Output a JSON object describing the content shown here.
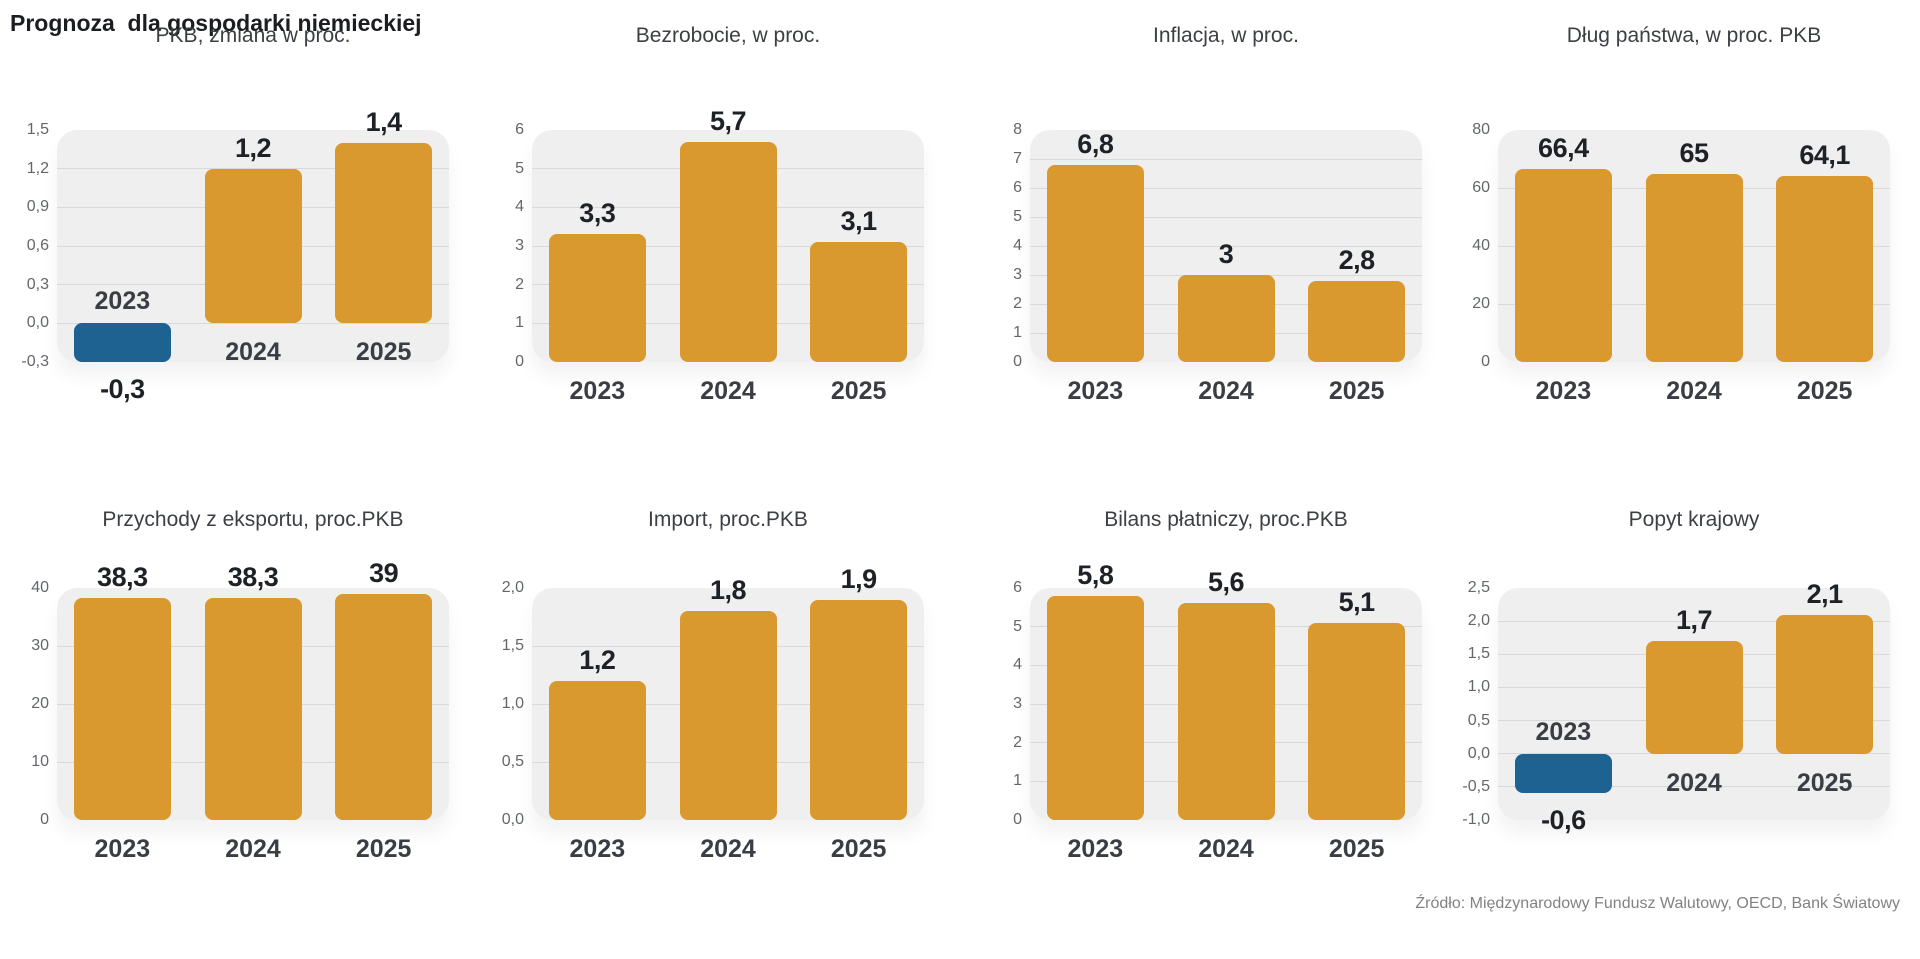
{
  "page": {
    "title": "Prognoza  dla gospodarki niemieckiej",
    "source": "Źródło: Międzynarodowy Fundusz Walutowy, OECD, Bank Światowy"
  },
  "colors": {
    "bar_positive": "#d9992f",
    "bar_negative": "#1d6290",
    "plot_background": "#efefef",
    "gridline": "#d9d9d9"
  },
  "chart_data": [
    {
      "type": "bar",
      "title": "PKB, zmiana w proc.",
      "categories": [
        "2023",
        "2024",
        "2025"
      ],
      "values": [
        -0.3,
        1.2,
        1.4
      ],
      "value_labels": [
        "-0,3",
        "1,2",
        "1,4"
      ],
      "ylim": [
        -0.3,
        1.5
      ],
      "yticks": [
        1.5,
        1.2,
        0.9,
        0.6,
        0.3,
        0.0,
        -0.3
      ],
      "ytick_labels": [
        "1,5",
        "1,2",
        "0,9",
        "0,6",
        "0,3",
        "0,0",
        "-0,3"
      ],
      "grid": true,
      "legend": false
    },
    {
      "type": "bar",
      "title": "Bezrobocie, w proc.",
      "categories": [
        "2023",
        "2024",
        "2025"
      ],
      "values": [
        3.3,
        5.7,
        3.1
      ],
      "value_labels": [
        "3,3",
        "5,7",
        "3,1"
      ],
      "ylim": [
        0,
        6
      ],
      "yticks": [
        6,
        5,
        4,
        3,
        2,
        1,
        0
      ],
      "ytick_labels": [
        "6",
        "5",
        "4",
        "3",
        "2",
        "1",
        "0"
      ],
      "grid": true,
      "legend": false
    },
    {
      "type": "bar",
      "title": "Inflacja, w proc.",
      "categories": [
        "2023",
        "2024",
        "2025"
      ],
      "values": [
        6.8,
        3,
        2.8
      ],
      "value_labels": [
        "6,8",
        "3",
        "2,8"
      ],
      "ylim": [
        0,
        8
      ],
      "yticks": [
        8,
        7,
        6,
        5,
        4,
        3,
        2,
        1,
        0
      ],
      "ytick_labels": [
        "8",
        "7",
        "6",
        "5",
        "4",
        "3",
        "2",
        "1",
        "0"
      ],
      "grid": true,
      "legend": false
    },
    {
      "type": "bar",
      "title": "Dług państwa, w proc. PKB",
      "categories": [
        "2023",
        "2024",
        "2025"
      ],
      "values": [
        66.4,
        65,
        64.1
      ],
      "value_labels": [
        "66,4",
        "65",
        "64,1"
      ],
      "ylim": [
        0,
        80
      ],
      "yticks": [
        80,
        60,
        40,
        20,
        0
      ],
      "ytick_labels": [
        "80",
        "60",
        "40",
        "20",
        "0"
      ],
      "grid": true,
      "legend": false
    },
    {
      "type": "bar",
      "title": "Przychody z eksportu, proc.PKB",
      "categories": [
        "2023",
        "2024",
        "2025"
      ],
      "values": [
        38.3,
        38.3,
        39
      ],
      "value_labels": [
        "38,3",
        "38,3",
        "39"
      ],
      "ylim": [
        0,
        40
      ],
      "yticks": [
        40,
        30,
        20,
        10,
        0
      ],
      "ytick_labels": [
        "40",
        "30",
        "20",
        "10",
        "0"
      ],
      "grid": true,
      "legend": false
    },
    {
      "type": "bar",
      "title": "Import, proc.PKB",
      "categories": [
        "2023",
        "2024",
        "2025"
      ],
      "values": [
        1.2,
        1.8,
        1.9
      ],
      "value_labels": [
        "1,2",
        "1,8",
        "1,9"
      ],
      "ylim": [
        0,
        2
      ],
      "yticks": [
        2.0,
        1.5,
        1.0,
        0.5,
        0.0
      ],
      "ytick_labels": [
        "2,0",
        "1,5",
        "1,0",
        "0,5",
        "0,0"
      ],
      "grid": true,
      "legend": false
    },
    {
      "type": "bar",
      "title": "Bilans płatniczy, proc.PKB",
      "categories": [
        "2023",
        "2024",
        "2025"
      ],
      "values": [
        5.8,
        5.6,
        5.1
      ],
      "value_labels": [
        "5,8",
        "5,6",
        "5,1"
      ],
      "ylim": [
        0,
        6
      ],
      "yticks": [
        6,
        5,
        4,
        3,
        2,
        1,
        0
      ],
      "ytick_labels": [
        "6",
        "5",
        "4",
        "3",
        "2",
        "1",
        "0"
      ],
      "grid": true,
      "legend": false
    },
    {
      "type": "bar",
      "title": "Popyt krajowy",
      "categories": [
        "2023",
        "2024",
        "2025"
      ],
      "values": [
        -0.6,
        1.7,
        2.1
      ],
      "value_labels": [
        "-0,6",
        "1,7",
        "2,1"
      ],
      "ylim": [
        -1.0,
        2.5
      ],
      "yticks": [
        2.5,
        2.0,
        1.5,
        1.0,
        0.5,
        0.0,
        -0.5,
        -1.0
      ],
      "ytick_labels": [
        "2,5",
        "2,0",
        "1,5",
        "1,0",
        "0,5",
        "0,0",
        "-0,5",
        "-1,0"
      ],
      "grid": true,
      "legend": false
    }
  ]
}
